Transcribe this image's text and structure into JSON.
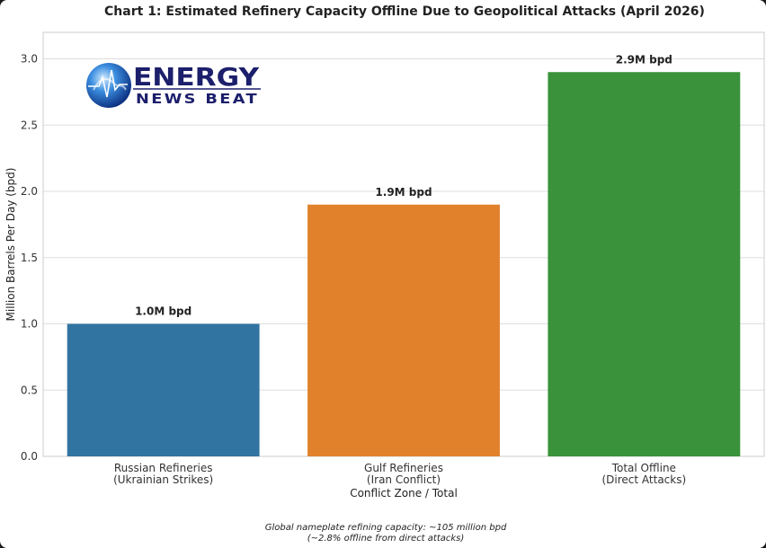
{
  "chart_data": {
    "type": "bar",
    "title": "Chart 1: Estimated Refinery Capacity Offline Due to Geopolitical Attacks (April 2026)",
    "xlabel": "Conflict Zone / Total",
    "ylabel": "Million Barrels Per Day (bpd)",
    "ylim": [
      0,
      3.2
    ],
    "yticks": [
      0.0,
      0.5,
      1.0,
      1.5,
      2.0,
      2.5,
      3.0
    ],
    "ytick_labels": [
      "0.0",
      "0.5",
      "1.0",
      "1.5",
      "2.0",
      "2.5",
      "3.0"
    ],
    "grid": "horizontal",
    "categories": [
      [
        "Russian Refineries",
        "(Ukrainian Strikes)"
      ],
      [
        "Gulf Refineries",
        "(Iran Conflict)"
      ],
      [
        "Total Offline",
        "(Direct Attacks)"
      ]
    ],
    "values": [
      1.0,
      1.9,
      2.9
    ],
    "data_labels": [
      "1.0M bpd",
      "1.9M bpd",
      "2.9M bpd"
    ],
    "colors": [
      "#3274a1",
      "#e1812c",
      "#3a923a"
    ],
    "footnote": [
      "Global nameplate refining capacity: ~105 million bpd",
      "(~2.8% offline from direct attacks)"
    ]
  },
  "logo": {
    "line1": "ENERGY",
    "line2": "NEWS BEAT"
  }
}
